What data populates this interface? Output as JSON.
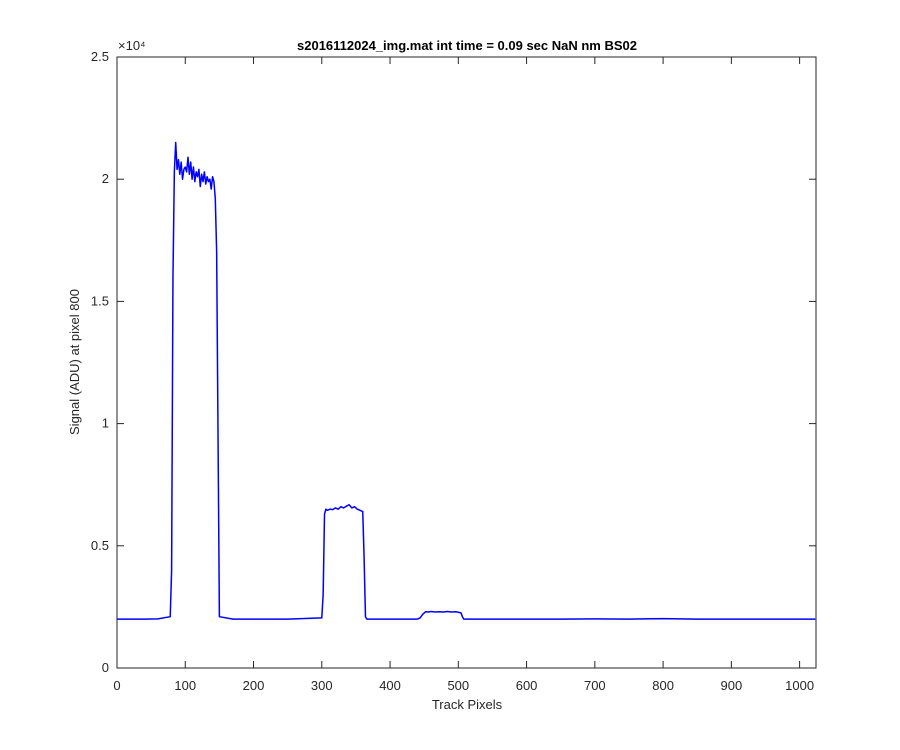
{
  "chart_data": {
    "type": "line",
    "title": "s2016112024_img.mat int time = 0.09 sec  NaN nm BS02",
    "xlabel": "Track Pixels",
    "ylabel": "Signal (ADU) at pixel 800",
    "y_exponent_label": "×10⁴",
    "xlim": [
      0,
      1024
    ],
    "ylim": [
      0,
      25000
    ],
    "xticks": [
      0,
      100,
      200,
      300,
      400,
      500,
      600,
      700,
      800,
      900,
      1000
    ],
    "xtick_labels": [
      "0",
      "100",
      "200",
      "300",
      "400",
      "500",
      "600",
      "700",
      "800",
      "900",
      "1000"
    ],
    "yticks": [
      0,
      5000,
      10000,
      15000,
      20000,
      25000
    ],
    "ytick_labels": [
      "0",
      "0.5",
      "1",
      "1.5",
      "2",
      "2.5"
    ],
    "grid": false,
    "box": true,
    "series": [
      {
        "color": "#0000ff",
        "x": [
          0,
          20,
          40,
          60,
          78,
          80,
          82,
          84,
          86,
          88,
          90,
          92,
          94,
          96,
          98,
          100,
          102,
          104,
          106,
          108,
          110,
          112,
          114,
          116,
          118,
          120,
          122,
          124,
          126,
          128,
          130,
          132,
          134,
          136,
          138,
          140,
          142,
          144,
          146,
          150,
          170,
          200,
          250,
          300,
          302,
          304,
          306,
          308,
          312,
          316,
          320,
          324,
          328,
          332,
          336,
          340,
          344,
          348,
          352,
          356,
          360,
          362,
          364,
          366,
          370,
          400,
          440,
          444,
          448,
          452,
          456,
          460,
          466,
          472,
          478,
          484,
          490,
          496,
          500,
          504,
          506,
          508,
          512,
          550,
          600,
          650,
          700,
          750,
          800,
          850,
          900,
          950,
          1000,
          1023
        ],
        "y": [
          2000,
          2000,
          2000,
          2010,
          2100,
          4000,
          16000,
          20300,
          21500,
          20400,
          20800,
          20200,
          20700,
          20000,
          20400,
          20500,
          20300,
          20900,
          20200,
          20700,
          20000,
          20500,
          19900,
          20300,
          20100,
          20400,
          19700,
          20200,
          19900,
          20300,
          19800,
          20100,
          19900,
          20000,
          19600,
          20100,
          19900,
          19200,
          17000,
          2100,
          2000,
          2000,
          2000,
          2050,
          3000,
          6300,
          6500,
          6450,
          6500,
          6480,
          6550,
          6500,
          6600,
          6550,
          6620,
          6680,
          6550,
          6600,
          6500,
          6450,
          6400,
          4500,
          2100,
          2000,
          2000,
          2000,
          2000,
          2050,
          2200,
          2300,
          2290,
          2310,
          2290,
          2300,
          2290,
          2310,
          2290,
          2300,
          2280,
          2250,
          2100,
          2000,
          2000,
          2000,
          2000,
          2000,
          2010,
          2000,
          2020,
          2000,
          2000,
          2000,
          2000,
          2000
        ]
      }
    ]
  }
}
